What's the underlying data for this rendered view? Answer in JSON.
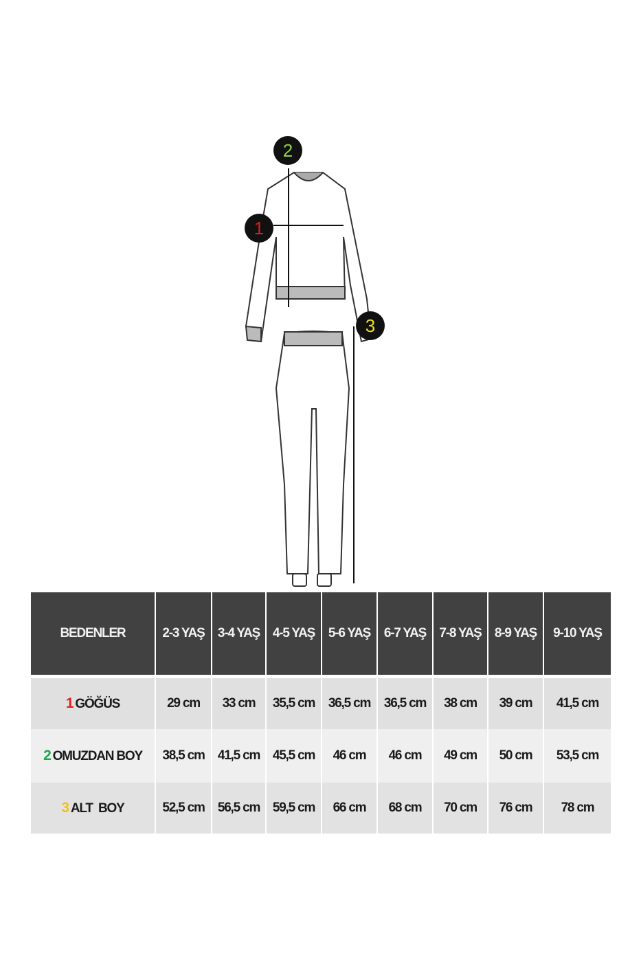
{
  "figure": {
    "markers": [
      {
        "number": "1",
        "color": "#d42020"
      },
      {
        "number": "2",
        "color": "#8fcf4f"
      },
      {
        "number": "3",
        "color": "#e8e020"
      }
    ]
  },
  "table": {
    "header": [
      "BEDENLER",
      "2-3 YAŞ",
      "3-4 YAŞ",
      "4-5 YAŞ",
      "5-6 YAŞ",
      "6-7 YAŞ",
      "7-8 YAŞ",
      "8-9 YAŞ",
      "9-10 YAŞ"
    ],
    "rows": [
      {
        "number": "1",
        "number_color": "#e02020",
        "label": "GÖĞÜS",
        "values": [
          "29 cm",
          "33 cm",
          "35,5 cm",
          "36,5 cm",
          "36,5 cm",
          "38 cm",
          "39 cm",
          "41,5 cm"
        ]
      },
      {
        "number": "2",
        "number_color": "#1aa84a",
        "label": "OMUZDAN BOY",
        "values": [
          "38,5 cm",
          "41,5 cm",
          "45,5 cm",
          "46 cm",
          "46 cm",
          "49 cm",
          "50 cm",
          "53,5 cm"
        ]
      },
      {
        "number": "3",
        "number_color": "#f0c020",
        "label": "ALT  BOY",
        "values": [
          "52,5 cm",
          "56,5 cm",
          "59,5 cm",
          "66 cm",
          "68 cm",
          "70 cm",
          "76 cm",
          "78 cm"
        ]
      }
    ]
  }
}
